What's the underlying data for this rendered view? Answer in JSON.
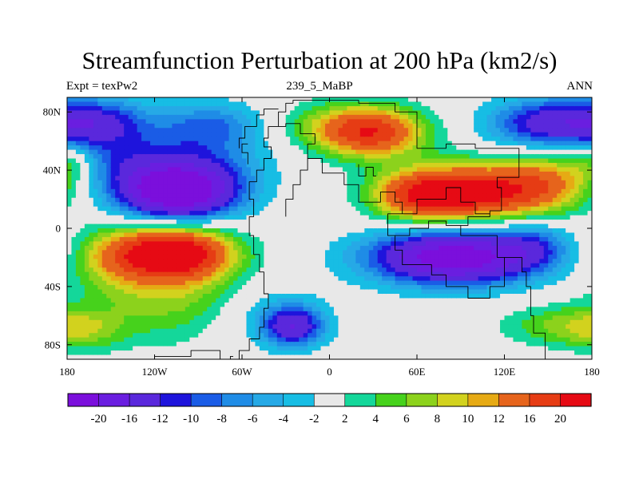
{
  "chart_data": {
    "type": "heatmap",
    "title": "Streamfunction Perturbation at 200 hPa (km2/s)",
    "subtitle_left": "Expt = texPw2",
    "subtitle_center": "239_5_MaBP",
    "subtitle_right": "ANN",
    "projection": "cylindrical equidistant",
    "xlim": [
      -180,
      180
    ],
    "ylim": [
      -90,
      90
    ],
    "x_ticks": [
      {
        "value": -180,
        "label": "180"
      },
      {
        "value": -120,
        "label": "120W"
      },
      {
        "value": -60,
        "label": "60W"
      },
      {
        "value": 0,
        "label": "0"
      },
      {
        "value": 60,
        "label": "60E"
      },
      {
        "value": 120,
        "label": "120E"
      },
      {
        "value": 180,
        "label": "180"
      }
    ],
    "y_ticks": [
      {
        "value": 80,
        "label": "80N"
      },
      {
        "value": 40,
        "label": "40N"
      },
      {
        "value": 0,
        "label": "0"
      },
      {
        "value": -40,
        "label": "40S"
      },
      {
        "value": -80,
        "label": "80S"
      }
    ],
    "levels": [
      -20,
      -16,
      -12,
      -10,
      -8,
      -6,
      -4,
      -2,
      2,
      4,
      6,
      8,
      10,
      12,
      16,
      20
    ],
    "level_labels": [
      "-20",
      "-16",
      "-12",
      "-10",
      "-8",
      "-6",
      "-4",
      "-2",
      "2",
      "4",
      "6",
      "8",
      "10",
      "12",
      "16",
      "20"
    ],
    "colors": [
      "#7b0fdc",
      "#6a1ee0",
      "#5a28dc",
      "#1e14dc",
      "#1a5ce6",
      "#1f8ce6",
      "#26a9e6",
      "#17bde4",
      "#e8e8e8",
      "#14d79a",
      "#46d21c",
      "#8cd21c",
      "#d2d21e",
      "#e6aa14",
      "#e6641c",
      "#e63c14",
      "#e60a14"
    ],
    "centers": [
      {
        "lon": -105,
        "lat": 25,
        "amp": -25,
        "slon": 28,
        "slat": 13
      },
      {
        "lon": -95,
        "lat": 50,
        "amp": -8,
        "slon": 35,
        "slat": 20
      },
      {
        "lon": -145,
        "lat": 45,
        "amp": -5,
        "slon": 22,
        "slat": 12
      },
      {
        "lon": -108,
        "lat": -17,
        "amp": 25,
        "slon": 27,
        "slat": 12
      },
      {
        "lon": -105,
        "lat": -45,
        "amp": 8,
        "slon": 40,
        "slat": 22
      },
      {
        "lon": -150,
        "lat": -20,
        "amp": 6,
        "slon": 20,
        "slat": 15
      },
      {
        "lon": 30,
        "lat": 66,
        "amp": 18,
        "slon": 25,
        "slat": 12
      },
      {
        "lon": 0,
        "lat": 70,
        "amp": 5,
        "slon": 25,
        "slat": 12
      },
      {
        "lon": 100,
        "lat": 25,
        "amp": 22,
        "slon": 35,
        "slat": 13
      },
      {
        "lon": 60,
        "lat": 22,
        "amp": 12,
        "slon": 22,
        "slat": 12
      },
      {
        "lon": 150,
        "lat": 33,
        "amp": 9,
        "slon": 22,
        "slat": 14
      },
      {
        "lon": 85,
        "lat": -20,
        "amp": -24,
        "slon": 40,
        "slat": 13
      },
      {
        "lon": 140,
        "lat": -12,
        "amp": -6,
        "slon": 18,
        "slat": 12
      },
      {
        "lon": -25,
        "lat": -67,
        "amp": -15,
        "slon": 15,
        "slat": 10
      },
      {
        "lon": -55,
        "lat": -55,
        "amp": -4,
        "slon": 30,
        "slat": 18
      },
      {
        "lon": 150,
        "lat": 72,
        "amp": -14,
        "slon": 28,
        "slat": 12
      },
      {
        "lon": -160,
        "lat": 72,
        "amp": -12,
        "slon": 24,
        "slat": 12
      },
      {
        "lon": -80,
        "lat": 72,
        "amp": -5,
        "slon": 22,
        "slat": 10
      },
      {
        "lon": 160,
        "lat": -67,
        "amp": 6,
        "slon": 30,
        "slat": 10
      },
      {
        "lon": -170,
        "lat": -70,
        "amp": 5,
        "slon": 20,
        "slat": 10
      },
      {
        "lon": -178,
        "lat": 45,
        "amp": 5,
        "slon": 12,
        "slat": 10
      }
    ]
  }
}
